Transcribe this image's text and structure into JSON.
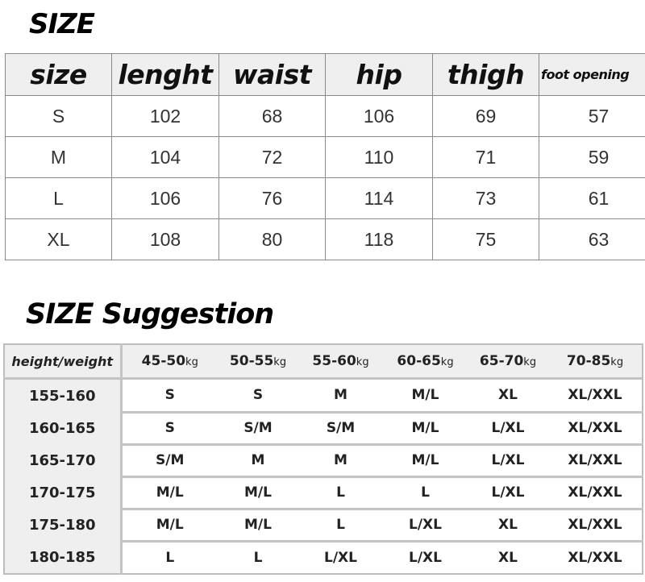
{
  "size_chart": {
    "title": "SIZE",
    "headers": [
      "size",
      "lenght",
      "waist",
      "hip",
      "thigh",
      "foot opening"
    ],
    "rows": [
      [
        "S",
        "102",
        "68",
        "106",
        "69",
        "57"
      ],
      [
        "M",
        "104",
        "72",
        "110",
        "71",
        "59"
      ],
      [
        "L",
        "106",
        "76",
        "114",
        "73",
        "61"
      ],
      [
        "XL",
        "108",
        "80",
        "118",
        "75",
        "63"
      ]
    ]
  },
  "suggestion": {
    "title": "SIZE Suggestion",
    "corner_header": "height/weight",
    "unit": "kg",
    "weights": [
      "45-50",
      "50-55",
      "55-60",
      "60-65",
      "65-70",
      "70-85"
    ],
    "rows": [
      {
        "height": "155-160",
        "sizes": [
          "S",
          "S",
          "M",
          "M/L",
          "XL",
          "XL/XXL"
        ]
      },
      {
        "height": "160-165",
        "sizes": [
          "S",
          "S/M",
          "S/M",
          "M/L",
          "L/XL",
          "XL/XXL"
        ]
      },
      {
        "height": "165-170",
        "sizes": [
          "S/M",
          "M",
          "M",
          "M/L",
          "L/XL",
          "XL/XXL"
        ]
      },
      {
        "height": "170-175",
        "sizes": [
          "M/L",
          "M/L",
          "L",
          "L",
          "L/XL",
          "XL/XXL"
        ]
      },
      {
        "height": "175-180",
        "sizes": [
          "M/L",
          "M/L",
          "L",
          "L/XL",
          "XL",
          "XL/XXL"
        ]
      },
      {
        "height": "180-185",
        "sizes": [
          "L",
          "L",
          "L/XL",
          "L/XL",
          "XL",
          "XL/XXL"
        ]
      }
    ]
  }
}
